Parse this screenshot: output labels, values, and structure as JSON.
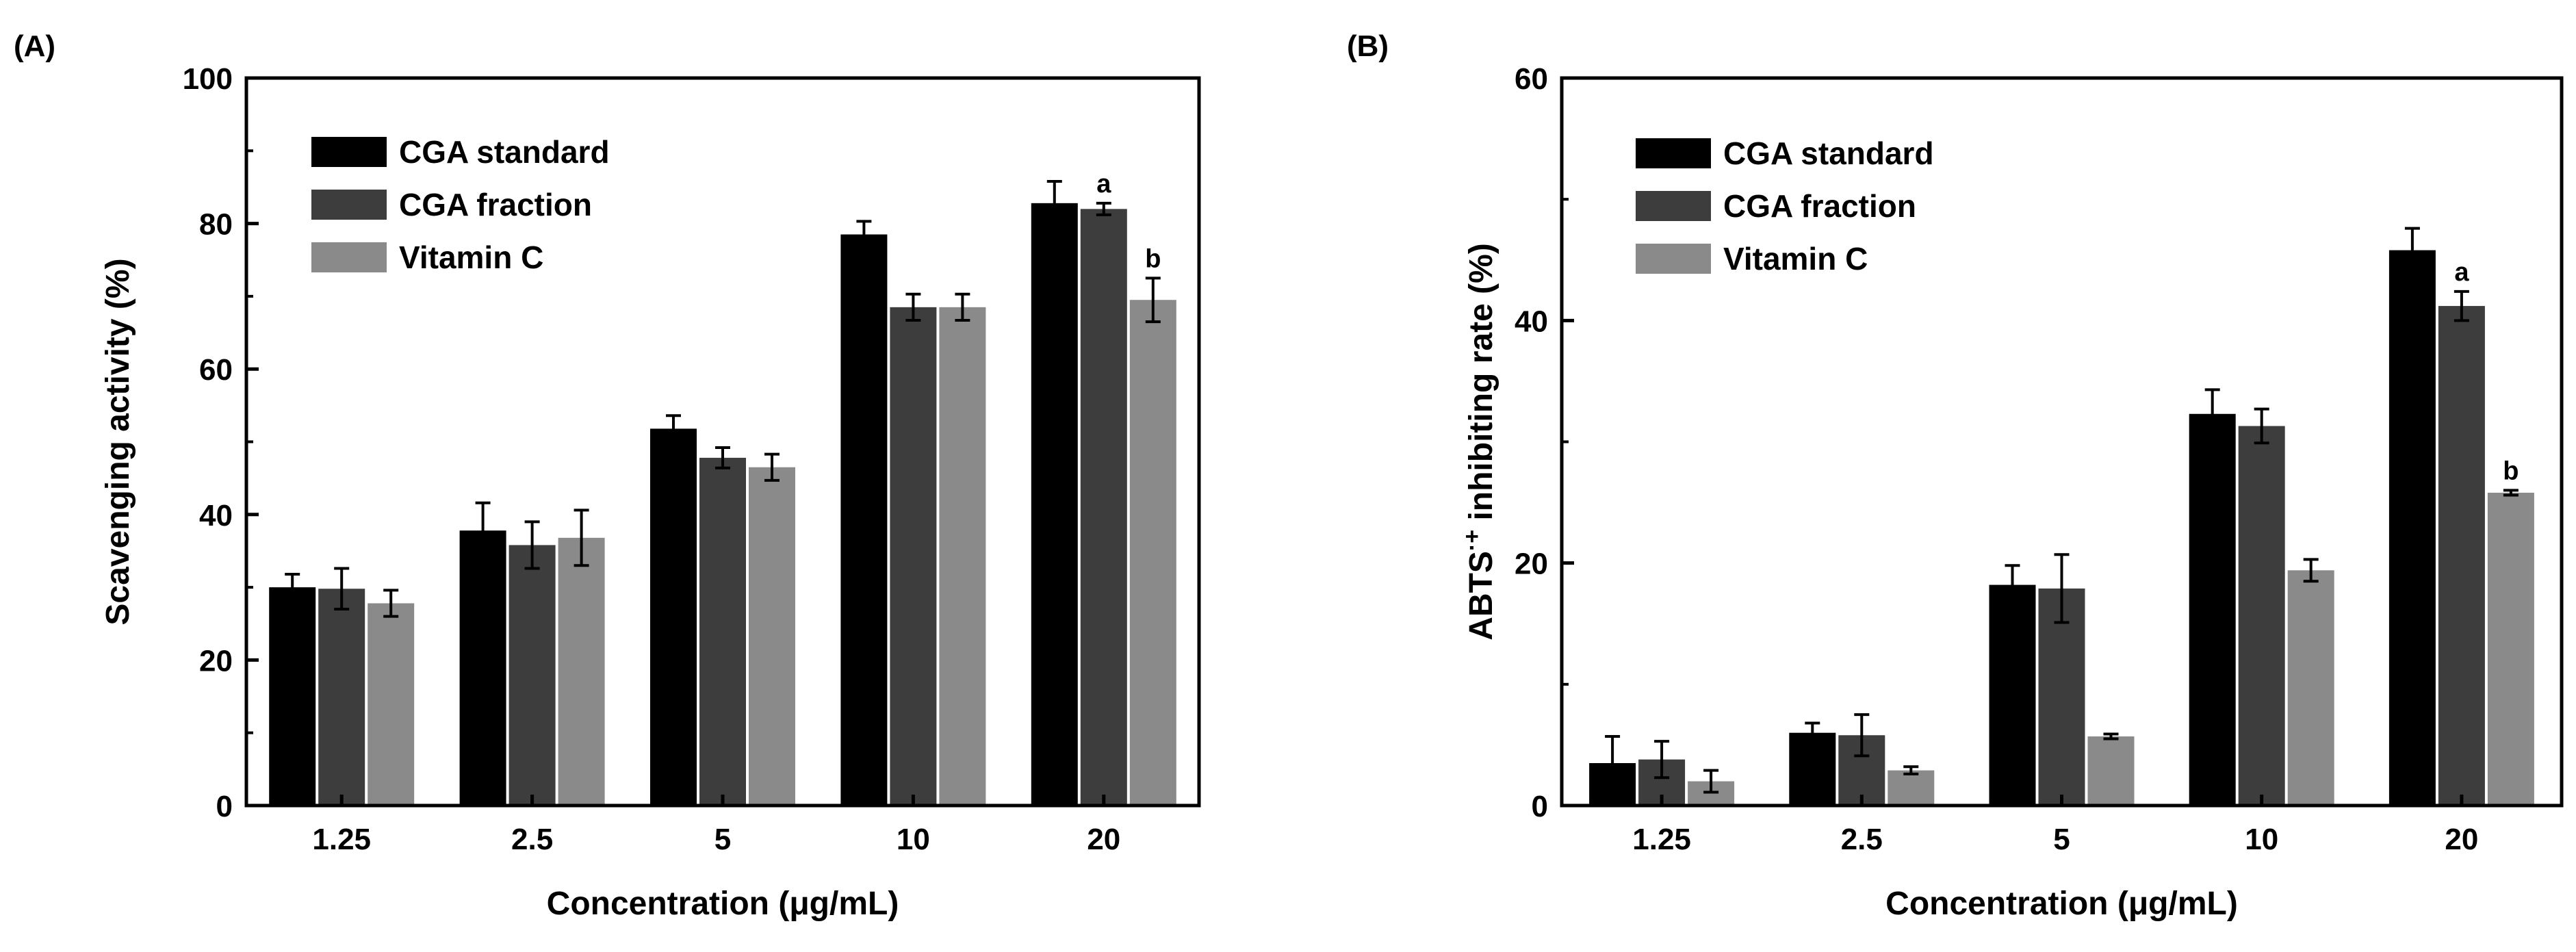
{
  "colors": {
    "series": [
      "#000000",
      "#3d3d3d",
      "#8a8a8a"
    ],
    "axis": "#000000"
  },
  "chart_data": [
    {
      "type": "bar",
      "panel_label": "(A)",
      "xlabel": "Concentration (μg/mL)",
      "ylabel": "Scavenging activity (%)",
      "ylim": [
        0,
        100
      ],
      "yticks": [
        0,
        20,
        40,
        60,
        80,
        100
      ],
      "categories": [
        "1.25",
        "2.5",
        "5",
        "10",
        "20"
      ],
      "legend": "top-left",
      "series": [
        {
          "name": "CGA standard",
          "values": [
            30.0,
            37.8,
            51.8,
            78.5,
            82.8
          ],
          "errors": [
            1.8,
            3.8,
            1.8,
            1.8,
            3.0
          ]
        },
        {
          "name": "CGA fraction",
          "values": [
            29.8,
            35.8,
            47.8,
            68.5,
            82.0
          ],
          "errors": [
            2.8,
            3.2,
            1.4,
            1.8,
            0.8
          ]
        },
        {
          "name": "Vitamin C",
          "values": [
            27.8,
            36.8,
            46.5,
            68.5,
            69.5
          ],
          "errors": [
            1.8,
            3.8,
            1.8,
            1.8,
            3.0
          ]
        }
      ],
      "annotations": [
        {
          "text": "a",
          "category": "20",
          "series": "CGA fraction"
        },
        {
          "text": "b",
          "category": "20",
          "series": "Vitamin C"
        }
      ]
    },
    {
      "type": "bar",
      "panel_label": "(B)",
      "xlabel": "Concentration (μg/mL)",
      "ylabel_main": "ABTS",
      "ylabel_sup": "·+",
      "ylabel_rest": " inhibiting rate (%)",
      "ylim": [
        0,
        60
      ],
      "yticks": [
        0,
        20,
        40,
        60
      ],
      "categories": [
        "1.25",
        "2.5",
        "5",
        "10",
        "20"
      ],
      "legend": "top-left",
      "series": [
        {
          "name": "CGA standard",
          "values": [
            3.5,
            6.0,
            18.2,
            32.3,
            45.8
          ],
          "errors": [
            2.2,
            0.8,
            1.6,
            2.0,
            1.8
          ]
        },
        {
          "name": "CGA fraction",
          "values": [
            3.8,
            5.8,
            17.9,
            31.3,
            41.2
          ],
          "errors": [
            1.5,
            1.7,
            2.8,
            1.4,
            1.2
          ]
        },
        {
          "name": "Vitamin C",
          "values": [
            2.0,
            2.9,
            5.7,
            19.4,
            25.8
          ],
          "errors": [
            0.9,
            0.3,
            0.2,
            0.9,
            0.2
          ]
        }
      ],
      "annotations": [
        {
          "text": "a",
          "category": "20",
          "series": "CGA fraction"
        },
        {
          "text": "b",
          "category": "20",
          "series": "Vitamin C"
        }
      ]
    }
  ]
}
